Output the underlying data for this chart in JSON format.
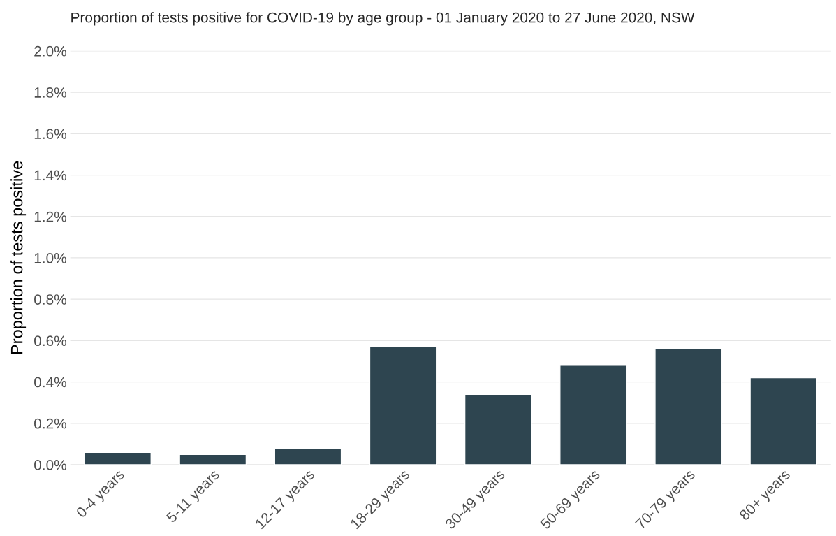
{
  "chart_data": {
    "type": "bar",
    "title": "Proportion of tests positive for COVID-19 by age group - 01 January 2020 to 27 June 2020, NSW",
    "ylabel": "Proportion of tests positive",
    "categories": [
      "0-4 years",
      "5-11 years",
      "12-17 years",
      "18-29 years",
      "30-49 years",
      "50-69 years",
      "70-79 years",
      "80+ years"
    ],
    "values": [
      0.06,
      0.05,
      0.08,
      0.57,
      0.34,
      0.48,
      0.56,
      0.42
    ],
    "color": "#2e4550",
    "ylim": [
      0,
      2.0
    ],
    "yticks": [
      {
        "value": 0,
        "label": "0.0%"
      },
      {
        "value": 0.2,
        "label": "0.2%"
      },
      {
        "value": 0.4,
        "label": "0.4%"
      },
      {
        "value": 0.6,
        "label": "0.6%"
      },
      {
        "value": 0.8,
        "label": "0.8%"
      },
      {
        "value": 1.0,
        "label": "1.0%"
      },
      {
        "value": 1.2,
        "label": "1.2%"
      },
      {
        "value": 1.4,
        "label": "1.4%"
      },
      {
        "value": 1.6,
        "label": "1.6%"
      },
      {
        "value": 1.8,
        "label": "1.8%"
      },
      {
        "value": 2.0,
        "label": "2.0%"
      }
    ],
    "grid": "y"
  }
}
